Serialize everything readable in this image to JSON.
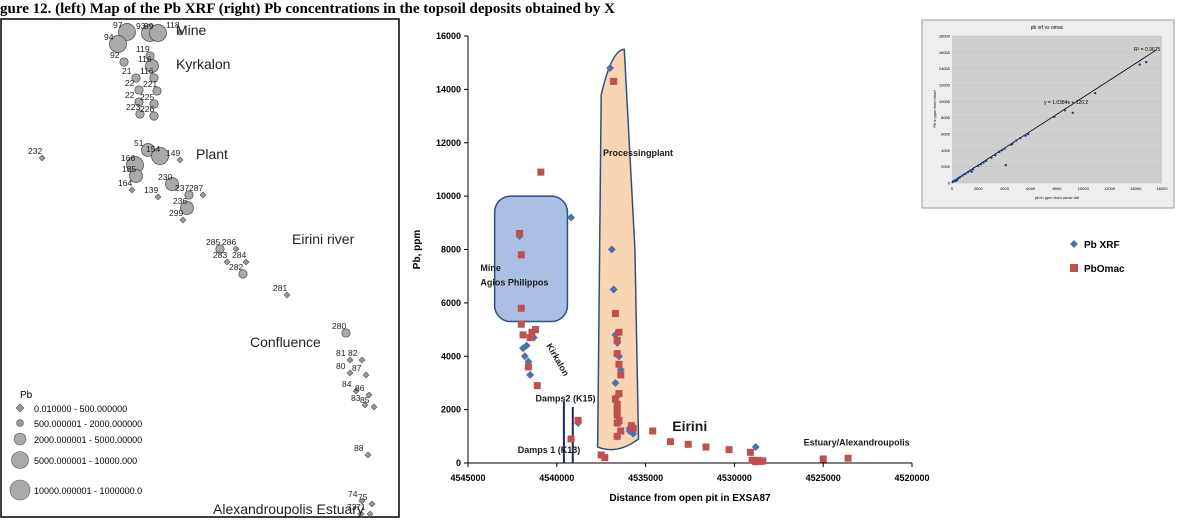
{
  "caption": "gure 12. (left) Map of the Pb XRF (right) Pb concentrations in the topsoil deposits obtained by X",
  "map": {
    "sites": [
      {
        "name": "Mine",
        "label": "Mine"
      },
      {
        "name": "Kyrkalon",
        "label": "Kyrkalon"
      },
      {
        "name": "Plant",
        "label": "Plant"
      },
      {
        "name": "Eirini-river",
        "label": "Eirini river"
      },
      {
        "name": "Confluence",
        "label": "Confluence"
      },
      {
        "name": "Alexandroupolis-Estuary",
        "label": "Alexandroupolis Estuary"
      }
    ],
    "samples": [
      {
        "id": "97",
        "size": 4
      },
      {
        "id": "93",
        "size": 4
      },
      {
        "id": "99",
        "size": 4
      },
      {
        "id": "118",
        "size": 1
      },
      {
        "id": "94",
        "size": 4
      },
      {
        "id": "119",
        "size": 2
      },
      {
        "id": "92",
        "size": 2
      },
      {
        "id": "116",
        "size": 3
      },
      {
        "id": "21",
        "size": 2
      },
      {
        "id": "116",
        "size": 2
      },
      {
        "id": "22",
        "size": 2
      },
      {
        "id": "221",
        "size": 2
      },
      {
        "id": "22",
        "size": 2
      },
      {
        "id": "225",
        "size": 2
      },
      {
        "id": "223",
        "size": 2
      },
      {
        "id": "226",
        "size": 2
      },
      {
        "id": "232",
        "size": 1
      },
      {
        "id": "51",
        "size": 3
      },
      {
        "id": "154",
        "size": 4
      },
      {
        "id": "149",
        "size": 1
      },
      {
        "id": "166",
        "size": 4
      },
      {
        "id": "185",
        "size": 3
      },
      {
        "id": "230",
        "size": 3
      },
      {
        "id": "237",
        "size": 2
      },
      {
        "id": "287",
        "size": 1
      },
      {
        "id": "164",
        "size": 1
      },
      {
        "id": "139",
        "size": 1
      },
      {
        "id": "236",
        "size": 3
      },
      {
        "id": "299",
        "size": 1
      },
      {
        "id": "285",
        "size": 2
      },
      {
        "id": "286",
        "size": 1
      },
      {
        "id": "283",
        "size": 1
      },
      {
        "id": "284",
        "size": 1
      },
      {
        "id": "282",
        "size": 2
      },
      {
        "id": "281",
        "size": 1
      },
      {
        "id": "280",
        "size": 2
      },
      {
        "id": "81",
        "size": 1
      },
      {
        "id": "82",
        "size": 1
      },
      {
        "id": "80",
        "size": 1
      },
      {
        "id": "87",
        "size": 1
      },
      {
        "id": "84",
        "size": 1
      },
      {
        "id": "86",
        "size": 1
      },
      {
        "id": "83",
        "size": 1
      },
      {
        "id": "85",
        "size": 1
      },
      {
        "id": "88",
        "size": 1
      },
      {
        "id": "74",
        "size": 1
      },
      {
        "id": "75",
        "size": 1
      },
      {
        "id": "73",
        "size": 1
      },
      {
        "id": "71",
        "size": 1
      }
    ],
    "legend": {
      "title": "Pb",
      "classes": [
        "0.010000 - 500.000000",
        "500.000001 - 2000.000000",
        "2000.000001 - 5000.00000",
        "5000.000001 - 10000.000",
        "10000.000001 - 1000000.0"
      ]
    }
  },
  "chart_data": [
    {
      "type": "scatter",
      "title": "",
      "xlabel": "Distance from open pit in EXSA87",
      "ylabel": "Pb, ppm",
      "xlim": [
        4545000,
        4520000
      ],
      "ylim": [
        0,
        16000
      ],
      "x_reversed": true,
      "xticks": [
        4545000,
        4540000,
        4535000,
        4530000,
        4525000,
        4520000
      ],
      "yticks": [
        0,
        2000,
        4000,
        6000,
        8000,
        10000,
        12000,
        14000,
        16000
      ],
      "grid": false,
      "legend": "right",
      "series": [
        {
          "name": "Pb XRF",
          "color": "#4f6fb0",
          "marker": "diamond",
          "x": [
            4542100,
            4541700,
            4541600,
            4541500,
            4541800,
            4541900,
            4541300,
            4539200,
            4538800,
            4537000,
            4536900,
            4536800,
            4536700,
            4536600,
            4536500,
            4536400,
            4536700,
            4536600,
            4536600,
            4536500,
            4536600,
            4535900,
            4535900,
            4535700,
            4528800,
            4529000
          ],
          "y": [
            8500,
            4400,
            3800,
            3300,
            4000,
            4300,
            4700,
            9200,
            1500,
            14800,
            8000,
            6500,
            4800,
            4500,
            4000,
            3500,
            3000,
            2500,
            2000,
            1500,
            1000,
            1300,
            1200,
            1100,
            600,
            100
          ]
        },
        {
          "name": "PbOmac",
          "color": "#c0504d",
          "marker": "square",
          "x": [
            4542100,
            4542000,
            4542000,
            4542000,
            4541900,
            4541600,
            4541500,
            4541400,
            4541200,
            4541100,
            4540900,
            4539200,
            4538800,
            4537500,
            4537300,
            4536800,
            4536700,
            4536600,
            4536500,
            4536600,
            4536500,
            4536400,
            4536500,
            4536700,
            4536600,
            4536600,
            4536600,
            4536500,
            4536600,
            4536400,
            4536600,
            4535800,
            4535700,
            4534600,
            4533600,
            4532600,
            4531600,
            4530300,
            4529100,
            4529000,
            4528800,
            4528700,
            4528500,
            4528400,
            4525000,
            4523600
          ],
          "y": [
            8600,
            7800,
            5800,
            5200,
            4800,
            3600,
            4700,
            4900,
            5000,
            2900,
            10900,
            900,
            1600,
            300,
            200,
            14300,
            5600,
            4600,
            4900,
            4100,
            3700,
            3300,
            2600,
            2400,
            2200,
            2000,
            1800,
            1600,
            1500,
            1200,
            1000,
            1400,
            1300,
            1200,
            800,
            700,
            600,
            500,
            400,
            100,
            50,
            100,
            60,
            80,
            150,
            180
          ]
        }
      ],
      "annotations": [
        {
          "name": "mine-agios-philippos",
          "text": [
            "Mine",
            "Agios Philippos"
          ]
        },
        {
          "name": "kirkalon",
          "text": [
            "Kirkalon"
          ]
        },
        {
          "name": "processing-plant",
          "text": [
            "Processingplant"
          ]
        },
        {
          "name": "damps2",
          "text": [
            "Damps2 (K15)"
          ]
        },
        {
          "name": "damps1",
          "text": [
            "Damps 1 (K13)"
          ]
        },
        {
          "name": "eirini",
          "text": [
            "Eirini"
          ]
        },
        {
          "name": "estuary",
          "text": [
            "Estuary/Alexandroupolis"
          ]
        }
      ]
    },
    {
      "type": "scatter",
      "title": "pb xrf vs omac",
      "xlabel": "pb in ppm from omac lab",
      "ylabel": "Pb in ppm from hhxrf",
      "xlim": [
        0,
        16000
      ],
      "ylim": [
        0,
        18000
      ],
      "xticks": [
        0,
        2000,
        4000,
        6000,
        8000,
        10000,
        12000,
        14000,
        16000
      ],
      "yticks": [
        0,
        2000,
        4000,
        6000,
        8000,
        10000,
        12000,
        14000,
        16000,
        18000
      ],
      "equation": "y = 1.0384x + 120.2",
      "r2": "R² = 0.9675",
      "trendline": {
        "slope": 1.0384,
        "intercept": 120.2
      },
      "series": [
        {
          "name": "",
          "color": "#1f3a8a",
          "x": [
            50,
            100,
            200,
            300,
            400,
            500,
            600,
            800,
            1000,
            1200,
            1400,
            1500,
            1600,
            2000,
            2200,
            2400,
            2600,
            3000,
            3300,
            3600,
            3800,
            4000,
            4100,
            4500,
            4600,
            4900,
            5200,
            5600,
            5800,
            7800,
            8600,
            9200,
            10900,
            14300,
            14800
          ],
          "y": [
            100,
            200,
            300,
            250,
            400,
            600,
            700,
            900,
            1100,
            1300,
            1500,
            1400,
            1700,
            2100,
            2300,
            2500,
            2700,
            3100,
            3400,
            3800,
            4000,
            4200,
            2200,
            4700,
            4800,
            5200,
            5500,
            5800,
            6000,
            8100,
            8900,
            8600,
            11000,
            14500,
            14800
          ]
        }
      ]
    }
  ]
}
